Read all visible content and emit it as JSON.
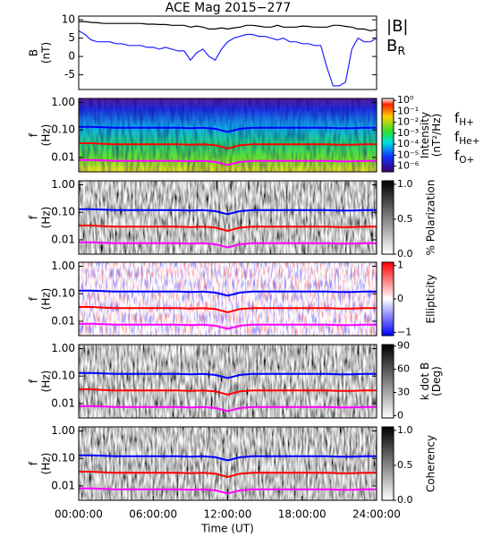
{
  "chart_data": [
    {
      "type": "line",
      "title": "ACE Mag 2015−277",
      "ylabel": [
        "B",
        "(nT)"
      ],
      "x": [
        0,
        0.5,
        1,
        1.5,
        2,
        2.5,
        3,
        3.5,
        4,
        4.5,
        5,
        5.5,
        6,
        6.5,
        7,
        7.5,
        8,
        8.5,
        9,
        9.5,
        10,
        10.5,
        11,
        11.5,
        12,
        12.5,
        13,
        13.5,
        14,
        14.5,
        15,
        15.5,
        16,
        16.5,
        17,
        17.5,
        18,
        18.5,
        19,
        19.5,
        20,
        20.5,
        21,
        21.5,
        22,
        22.5,
        23,
        23.5,
        24
      ],
      "xlim": [
        0,
        24
      ],
      "ylim": [
        -9,
        11
      ],
      "yticks": [
        -5,
        0,
        5,
        10
      ],
      "series": [
        {
          "name": "|B|",
          "color": "#000000",
          "values": [
            9.5,
            9.5,
            9.3,
            9.2,
            9,
            9,
            9,
            9,
            9,
            9,
            9,
            8.8,
            8.8,
            8.7,
            8.7,
            8.5,
            8.5,
            8.5,
            8,
            8.3,
            8,
            7.5,
            7.5,
            7.8,
            7.5,
            7.8,
            8,
            8.5,
            8.5,
            8.3,
            8,
            8,
            8.5,
            8,
            8,
            8,
            8.3,
            8.2,
            8,
            8,
            8,
            8.5,
            8.5,
            8.2,
            8,
            7.5,
            7.5,
            7,
            7.3
          ]
        },
        {
          "name": "B",
          "name_sub": "R",
          "color": "#2020ff",
          "values": [
            7,
            6,
            4.5,
            4,
            4,
            4,
            3.5,
            3.5,
            3,
            3,
            3,
            2.5,
            2.5,
            2,
            2.5,
            2,
            1.5,
            1.5,
            -1,
            1,
            2,
            0,
            -1,
            2,
            4,
            5,
            5.5,
            6,
            6,
            5.5,
            5.5,
            5,
            4.5,
            5,
            4,
            4,
            3.5,
            3.5,
            3,
            3,
            -3,
            -8,
            -8,
            -7,
            2,
            5,
            4,
            4,
            5
          ]
        }
      ]
    },
    {
      "type": "spectrogram",
      "texture": "intensity",
      "ylabel": [
        "f",
        "(Hz)"
      ],
      "clabel": [
        "Intensity",
        "(nT²/Hz)"
      ],
      "log_y": true,
      "xlim": [
        0,
        24
      ],
      "ylim": [
        0.003,
        1.4
      ],
      "yticks": [
        {
          "value": 1,
          "label": "1.00"
        },
        {
          "value": 0.1,
          "label": "0.10"
        },
        {
          "value": 0.01,
          "label": "0.01"
        }
      ],
      "clim": [
        3e-07,
        1.5
      ],
      "log_c": true,
      "cticks": [
        {
          "value": 1,
          "label": "10⁰"
        },
        {
          "value": 0.1,
          "label": "10⁻¹"
        },
        {
          "value": 0.01,
          "label": "10⁻²"
        },
        {
          "value": 0.001,
          "label": "10⁻³"
        },
        {
          "value": 0.0001,
          "label": "10⁻⁴"
        },
        {
          "value": 1e-05,
          "label": "10⁻⁵"
        },
        {
          "value": 1e-06,
          "label": "10⁻⁶"
        }
      ],
      "x": [
        0,
        1,
        2,
        3,
        4,
        5,
        6,
        7,
        8,
        9,
        10,
        11,
        12,
        13,
        14,
        15,
        16,
        17,
        18,
        19,
        20,
        21,
        22,
        23,
        24
      ],
      "series": [
        {
          "name": "f",
          "name_sub": "H+",
          "color": "#0000ff",
          "values": [
            0.13,
            0.13,
            0.125,
            0.12,
            0.12,
            0.12,
            0.12,
            0.12,
            0.12,
            0.115,
            0.12,
            0.11,
            0.085,
            0.11,
            0.12,
            0.12,
            0.12,
            0.12,
            0.12,
            0.12,
            0.12,
            0.115,
            0.115,
            0.12,
            0.12
          ]
        },
        {
          "name": "f",
          "name_sub": "He+",
          "color": "#ff0000",
          "values": [
            0.033,
            0.033,
            0.031,
            0.03,
            0.03,
            0.03,
            0.03,
            0.03,
            0.03,
            0.029,
            0.03,
            0.028,
            0.021,
            0.028,
            0.03,
            0.03,
            0.03,
            0.03,
            0.03,
            0.03,
            0.03,
            0.029,
            0.029,
            0.03,
            0.03
          ]
        },
        {
          "name": "f",
          "name_sub": "O+",
          "color": "#ff00ff",
          "values": [
            0.0081,
            0.0081,
            0.0078,
            0.0075,
            0.0075,
            0.0075,
            0.0075,
            0.0075,
            0.0075,
            0.0072,
            0.0075,
            0.0069,
            0.0053,
            0.0069,
            0.0075,
            0.0075,
            0.0075,
            0.0075,
            0.0075,
            0.0075,
            0.0075,
            0.0072,
            0.0072,
            0.0075,
            0.0075
          ]
        }
      ]
    },
    {
      "type": "spectrogram",
      "texture": "gray",
      "ylabel": [
        "f",
        "(Hz)"
      ],
      "clabel": [
        "% Polarization"
      ],
      "log_y": true,
      "xlim": [
        0,
        24
      ],
      "ylim": [
        0.003,
        1.4
      ],
      "yticks": [
        {
          "value": 1,
          "label": "1.00"
        },
        {
          "value": 0.1,
          "label": "0.10"
        },
        {
          "value": 0.01,
          "label": "0.01"
        }
      ],
      "clim": [
        0,
        1.05
      ],
      "cticks": [
        {
          "value": 1,
          "label": "1.0"
        },
        {
          "value": 0.5,
          "label": "0.5"
        },
        {
          "value": 0,
          "label": "0.0"
        }
      ]
    },
    {
      "type": "spectrogram",
      "texture": "ellipticity",
      "ylabel": [
        "f",
        "(Hz)"
      ],
      "clabel": [
        "Ellipticity"
      ],
      "log_y": true,
      "xlim": [
        0,
        24
      ],
      "ylim": [
        0.003,
        1.4
      ],
      "yticks": [
        {
          "value": 1,
          "label": "1.00"
        },
        {
          "value": 0.1,
          "label": "0.10"
        },
        {
          "value": 0.01,
          "label": "0.01"
        }
      ],
      "clim": [
        -1.1,
        1.1
      ],
      "cticks": [
        {
          "value": 1,
          "label": "1"
        },
        {
          "value": 0,
          "label": "0"
        },
        {
          "value": -1,
          "label": "−1"
        }
      ]
    },
    {
      "type": "spectrogram",
      "texture": "gray",
      "ylabel": [
        "f",
        "(Hz)"
      ],
      "clabel": [
        "k dot B",
        "(Deg)"
      ],
      "log_y": true,
      "xlim": [
        0,
        24
      ],
      "ylim": [
        0.003,
        1.4
      ],
      "yticks": [
        {
          "value": 1,
          "label": "1.00"
        },
        {
          "value": 0.1,
          "label": "0.10"
        },
        {
          "value": 0.01,
          "label": "0.01"
        }
      ],
      "clim": [
        -3,
        92
      ],
      "cticks": [
        90,
        60,
        30,
        0
      ]
    },
    {
      "type": "spectrogram",
      "texture": "gray",
      "ylabel": [
        "f",
        "(Hz)"
      ],
      "clabel": [
        "Coherency"
      ],
      "log_y": true,
      "xlim": [
        0,
        24
      ],
      "ylim": [
        0.003,
        1.4
      ],
      "yticks": [
        {
          "value": 1,
          "label": "1.00"
        },
        {
          "value": 0.1,
          "label": "0.10"
        },
        {
          "value": 0.01,
          "label": "0.01"
        }
      ],
      "clim": [
        0,
        1.05
      ],
      "cticks": [
        {
          "value": 1,
          "label": "1.0"
        },
        {
          "value": 0.5,
          "label": "0.5"
        },
        {
          "value": 0,
          "label": "0.0"
        }
      ],
      "xlabel": "Time (UT)",
      "xticks": [
        {
          "value": 0,
          "label": "00:00:00"
        },
        {
          "value": 6,
          "label": "06:00:00"
        },
        {
          "value": 12,
          "label": "12:00:00"
        },
        {
          "value": 18,
          "label": "18:00:00"
        },
        {
          "value": 24,
          "label": "24:00:00"
        }
      ]
    }
  ]
}
